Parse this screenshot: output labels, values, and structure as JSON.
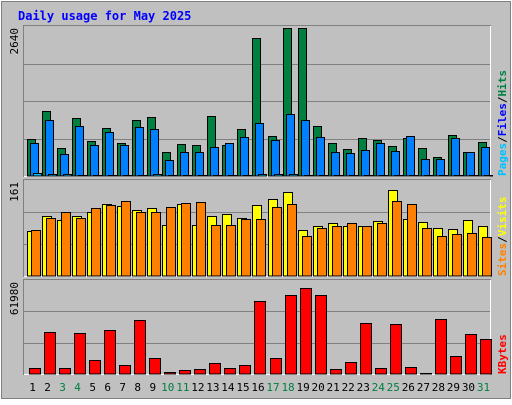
{
  "chart_data": [
    {
      "type": "bar",
      "title": "Daily usage for May 2025",
      "categories": [
        "1",
        "2",
        "3",
        "4",
        "5",
        "6",
        "7",
        "8",
        "9",
        "10",
        "11",
        "12",
        "13",
        "14",
        "15",
        "16",
        "17",
        "18",
        "19",
        "20",
        "21",
        "22",
        "23",
        "24",
        "25",
        "26",
        "27",
        "28",
        "29",
        "30",
        "31"
      ],
      "weekend_days": [
        "3",
        "4",
        "10",
        "11",
        "17",
        "18",
        "24",
        "25",
        "31"
      ],
      "ymax_label": "2640",
      "legend": [
        "Pages",
        "/",
        "Files",
        "/",
        "Hits"
      ],
      "ylim": [
        0,
        2640
      ],
      "series": [
        {
          "name": "Hits",
          "color": "#008040",
          "values": [
            660,
            1155,
            495,
            1035,
            622,
            855,
            585,
            1000,
            1060,
            420,
            570,
            560,
            1070,
            550,
            840,
            2465,
            705,
            2640,
            2640,
            885,
            580,
            485,
            670,
            648,
            538,
            680,
            495,
            335,
            730,
            420,
            615
          ]
        },
        {
          "name": "Files",
          "color": "#0080ff",
          "values": [
            590,
            1000,
            400,
            895,
            560,
            785,
            545,
            880,
            835,
            283,
            430,
            435,
            520,
            590,
            690,
            945,
            640,
            1100,
            1000,
            700,
            420,
            410,
            465,
            590,
            450,
            720,
            300,
            305,
            680,
            420,
            520
          ]
        },
        {
          "name": "Pages",
          "color": "#00c0ff",
          "values": [
            45,
            40,
            30,
            15,
            20,
            20,
            20,
            18,
            35,
            20,
            15,
            18,
            20,
            18,
            20,
            30,
            30,
            30,
            25,
            15,
            15,
            15,
            15,
            20,
            20,
            20,
            20,
            15,
            15,
            15,
            20
          ]
        }
      ]
    },
    {
      "type": "bar",
      "ymax_label": "161",
      "legend": [
        "Sites",
        "/",
        "Visits"
      ],
      "ylim": [
        0,
        161
      ],
      "series": [
        {
          "name": "Visits",
          "color": "#ffff00",
          "values": [
            77,
            103,
            96,
            102,
            110,
            124,
            120,
            113,
            117,
            88,
            124,
            88,
            103,
            106,
            99,
            122,
            132,
            144,
            78,
            86,
            90,
            85,
            85,
            94,
            147,
            97,
            92,
            82,
            80,
            96,
            85
          ]
        },
        {
          "name": "Sites",
          "color": "#ff8000",
          "values": [
            79,
            100,
            109,
            100,
            116,
            122,
            128,
            109,
            110,
            119,
            125,
            127,
            87,
            87,
            98,
            98,
            118,
            124,
            69,
            82,
            86,
            91,
            86,
            91,
            128,
            123,
            82,
            69,
            72,
            74,
            66
          ]
        }
      ]
    },
    {
      "type": "bar",
      "ymax_label": "61980",
      "legend": [
        "KBytes"
      ],
      "ylim": [
        0,
        61980
      ],
      "series": [
        {
          "name": "KBytes",
          "color": "#ff0000",
          "values": [
            4020,
            28050,
            4170,
            27350,
            9630,
            29520,
            6340,
            36610,
            10840,
            1680,
            2980,
            3260,
            7210,
            4250,
            5780,
            49120,
            10830,
            53380,
            57980,
            52890,
            3150,
            8310,
            34440,
            4290,
            33790,
            4590,
            440,
            36930,
            12030,
            26880,
            23760
          ]
        }
      ]
    }
  ],
  "colors": {
    "panel_bg": "#c0c0c0",
    "frame_bg": "#c0c0c0",
    "title": "#0000ff",
    "weekend_label": "#008040",
    "weekday_label": "#000000"
  }
}
